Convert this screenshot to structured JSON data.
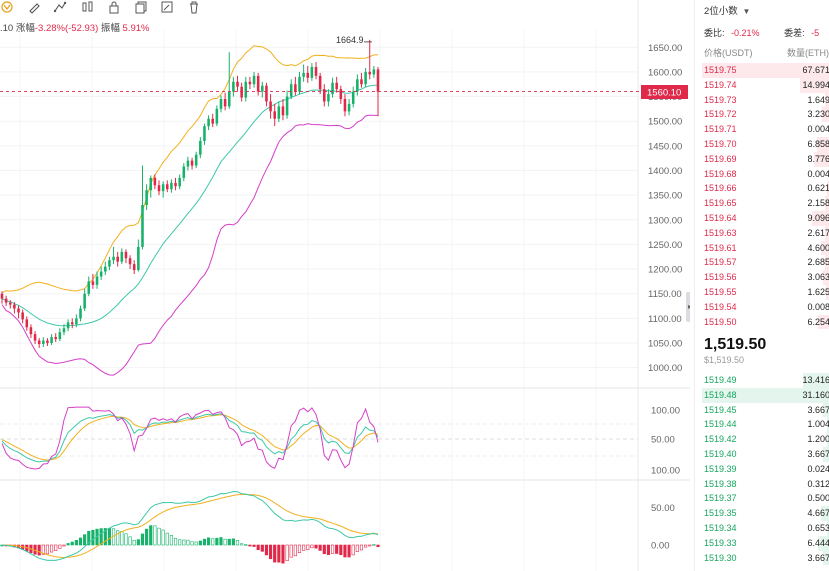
{
  "toolbar": {
    "icons": [
      "magnet-icon",
      "pencil-icon",
      "path-icon",
      "candles-icon",
      "lock-icon",
      "copy-icon",
      "edit-icon",
      "trash-icon"
    ]
  },
  "info_line": {
    "prefix": ".10",
    "change_label": "涨幅",
    "change_value": "-3.28%(-52.93)",
    "amp_label": "振幅",
    "amp_value": "5.91%"
  },
  "price_axis": {
    "ticks": [
      "1650.00",
      "1600.00",
      "1550.00",
      "1500.00",
      "1450.00",
      "1400.00",
      "1350.00",
      "1300.00",
      "1250.00",
      "1200.00",
      "1150.00",
      "1100.00",
      "1050.00",
      "1000.00"
    ],
    "current_tag": "1560.10",
    "high_label": "1664.9"
  },
  "kdj_axis": {
    "ticks": [
      "100.00",
      "50.00",
      "0.00"
    ]
  },
  "macd_axis": {
    "ticks": [
      "100.00",
      "50.00",
      "0.00"
    ]
  },
  "chart_data": {
    "type": "candlestick",
    "last": 1560.1,
    "high_marker": 1664.9,
    "ylim": [
      975,
      1685
    ],
    "candles": [
      [
        1150,
        1140,
        1155,
        1130
      ],
      [
        1140,
        1132,
        1146,
        1125
      ],
      [
        1132,
        1128,
        1137,
        1120
      ],
      [
        1128,
        1120,
        1133,
        1110
      ],
      [
        1120,
        1112,
        1126,
        1100
      ],
      [
        1112,
        1098,
        1118,
        1090
      ],
      [
        1098,
        1082,
        1104,
        1075
      ],
      [
        1082,
        1068,
        1088,
        1060
      ],
      [
        1068,
        1055,
        1074,
        1048
      ],
      [
        1055,
        1048,
        1060,
        1040
      ],
      [
        1048,
        1055,
        1062,
        1042
      ],
      [
        1055,
        1050,
        1060,
        1044
      ],
      [
        1050,
        1062,
        1068,
        1046
      ],
      [
        1062,
        1058,
        1070,
        1052
      ],
      [
        1058,
        1072,
        1080,
        1054
      ],
      [
        1072,
        1080,
        1088,
        1066
      ],
      [
        1080,
        1092,
        1098,
        1074
      ],
      [
        1092,
        1088,
        1100,
        1080
      ],
      [
        1088,
        1100,
        1108,
        1082
      ],
      [
        1100,
        1120,
        1126,
        1094
      ],
      [
        1120,
        1150,
        1160,
        1115
      ],
      [
        1150,
        1175,
        1185,
        1145
      ],
      [
        1175,
        1168,
        1190,
        1160
      ],
      [
        1168,
        1185,
        1195,
        1160
      ],
      [
        1185,
        1195,
        1205,
        1178
      ],
      [
        1195,
        1205,
        1215,
        1188
      ],
      [
        1205,
        1218,
        1225,
        1198
      ],
      [
        1218,
        1225,
        1245,
        1210
      ],
      [
        1225,
        1215,
        1235,
        1205
      ],
      [
        1215,
        1235,
        1242,
        1210
      ],
      [
        1235,
        1222,
        1240,
        1212
      ],
      [
        1222,
        1210,
        1228,
        1200
      ],
      [
        1210,
        1198,
        1218,
        1190
      ],
      [
        1198,
        1245,
        1260,
        1195
      ],
      [
        1245,
        1330,
        1410,
        1240
      ],
      [
        1330,
        1360,
        1372,
        1320
      ],
      [
        1360,
        1385,
        1390,
        1345
      ],
      [
        1385,
        1370,
        1392,
        1362
      ],
      [
        1370,
        1358,
        1380,
        1350
      ],
      [
        1358,
        1372,
        1378,
        1345
      ],
      [
        1372,
        1362,
        1380,
        1356
      ],
      [
        1362,
        1375,
        1382,
        1355
      ],
      [
        1375,
        1368,
        1385,
        1360
      ],
      [
        1368,
        1385,
        1392,
        1362
      ],
      [
        1385,
        1408,
        1415,
        1378
      ],
      [
        1408,
        1420,
        1428,
        1400
      ],
      [
        1420,
        1410,
        1426,
        1402
      ],
      [
        1410,
        1432,
        1438,
        1405
      ],
      [
        1432,
        1460,
        1468,
        1425
      ],
      [
        1460,
        1490,
        1495,
        1452
      ],
      [
        1490,
        1505,
        1512,
        1482
      ],
      [
        1505,
        1495,
        1515,
        1488
      ],
      [
        1495,
        1525,
        1532,
        1490
      ],
      [
        1525,
        1545,
        1552,
        1518
      ],
      [
        1545,
        1530,
        1558,
        1522
      ],
      [
        1530,
        1560,
        1640,
        1525
      ],
      [
        1560,
        1580,
        1590,
        1550
      ],
      [
        1580,
        1570,
        1592,
        1560
      ],
      [
        1570,
        1548,
        1578,
        1540
      ],
      [
        1548,
        1580,
        1590,
        1540
      ],
      [
        1580,
        1575,
        1590,
        1565
      ],
      [
        1575,
        1592,
        1600,
        1568
      ],
      [
        1592,
        1560,
        1598,
        1552
      ],
      [
        1560,
        1572,
        1580,
        1548
      ],
      [
        1572,
        1540,
        1578,
        1530
      ],
      [
        1540,
        1520,
        1555,
        1505
      ],
      [
        1520,
        1505,
        1535,
        1490
      ],
      [
        1505,
        1530,
        1540,
        1498
      ],
      [
        1530,
        1512,
        1545,
        1502
      ],
      [
        1512,
        1550,
        1562,
        1505
      ],
      [
        1550,
        1575,
        1585,
        1545
      ],
      [
        1575,
        1560,
        1590,
        1552
      ],
      [
        1560,
        1590,
        1600,
        1555
      ],
      [
        1590,
        1598,
        1615,
        1580
      ],
      [
        1598,
        1588,
        1612,
        1578
      ],
      [
        1588,
        1610,
        1618,
        1582
      ],
      [
        1610,
        1592,
        1620,
        1585
      ],
      [
        1592,
        1565,
        1598,
        1555
      ],
      [
        1565,
        1540,
        1575,
        1530
      ],
      [
        1540,
        1555,
        1565,
        1530
      ],
      [
        1555,
        1578,
        1588,
        1548
      ],
      [
        1578,
        1565,
        1590,
        1558
      ],
      [
        1565,
        1545,
        1572,
        1535
      ],
      [
        1545,
        1520,
        1555,
        1510
      ],
      [
        1520,
        1535,
        1545,
        1512
      ],
      [
        1535,
        1560,
        1570,
        1528
      ],
      [
        1560,
        1585,
        1595,
        1552
      ],
      [
        1585,
        1575,
        1598,
        1568
      ],
      [
        1575,
        1600,
        1608,
        1570
      ],
      [
        1600,
        1595,
        1665,
        1585
      ],
      [
        1595,
        1605,
        1612,
        1588
      ],
      [
        1605,
        1560,
        1610,
        1510
      ]
    ]
  },
  "orderbook": {
    "precision": "2位小数",
    "ratio_label": "委比:",
    "ratio_value": "-0.21%",
    "diff_label": "委差:",
    "diff_value": "-5",
    "col_price": "价格(USDT)",
    "col_qty": "数量(ETH)",
    "asks": [
      {
        "p": "1519.75",
        "q": "67.671",
        "w": 0.95
      },
      {
        "p": "1519.74",
        "q": "14.994",
        "w": 0.22
      },
      {
        "p": "1519.73",
        "q": "1.649",
        "w": 0.04
      },
      {
        "p": "1519.72",
        "q": "3.230",
        "w": 0.06
      },
      {
        "p": "1519.71",
        "q": "0.004",
        "w": 0.01
      },
      {
        "p": "1519.70",
        "q": "6.858",
        "w": 0.1
      },
      {
        "p": "1519.69",
        "q": "8.776",
        "w": 0.12
      },
      {
        "p": "1519.68",
        "q": "0.004",
        "w": 0.01
      },
      {
        "p": "1519.66",
        "q": "0.621",
        "w": 0.02
      },
      {
        "p": "1519.65",
        "q": "2.158",
        "w": 0.04
      },
      {
        "p": "1519.64",
        "q": "9.096",
        "w": 0.13
      },
      {
        "p": "1519.63",
        "q": "2.617",
        "w": 0.04
      },
      {
        "p": "1519.61",
        "q": "4.600",
        "w": 0.07
      },
      {
        "p": "1519.57",
        "q": "2.685",
        "w": 0.04
      },
      {
        "p": "1519.56",
        "q": "3.063",
        "w": 0.05
      },
      {
        "p": "1519.55",
        "q": "1.625",
        "w": 0.03
      },
      {
        "p": "1519.54",
        "q": "0.008",
        "w": 0.01
      },
      {
        "p": "1519.50",
        "q": "6.254",
        "w": 0.09
      }
    ],
    "last_price": "1,519.50",
    "last_sub": "$1,519.50",
    "bids": [
      {
        "p": "1519.49",
        "q": "13.416",
        "w": 0.2
      },
      {
        "p": "1519.48",
        "q": "31.160",
        "w": 0.95
      },
      {
        "p": "1519.45",
        "q": "3.667",
        "w": 0.05
      },
      {
        "p": "1519.44",
        "q": "1.004",
        "w": 0.02
      },
      {
        "p": "1519.42",
        "q": "1.200",
        "w": 0.02
      },
      {
        "p": "1519.40",
        "q": "3.667",
        "w": 0.05
      },
      {
        "p": "1519.39",
        "q": "0.024",
        "w": 0.01
      },
      {
        "p": "1519.38",
        "q": "0.312",
        "w": 0.01
      },
      {
        "p": "1519.37",
        "q": "0.500",
        "w": 0.01
      },
      {
        "p": "1519.35",
        "q": "4.667",
        "w": 0.07
      },
      {
        "p": "1519.34",
        "q": "0.653",
        "w": 0.02
      },
      {
        "p": "1519.33",
        "q": "6.444",
        "w": 0.09
      },
      {
        "p": "1519.30",
        "q": "3.667",
        "w": 0.05
      }
    ]
  },
  "colors": {
    "up": "#17b26a",
    "down": "#e0294a",
    "boll_mid": "#3cc8a8",
    "boll_up": "#f2b01e",
    "boll_low": "#d63fc7"
  }
}
